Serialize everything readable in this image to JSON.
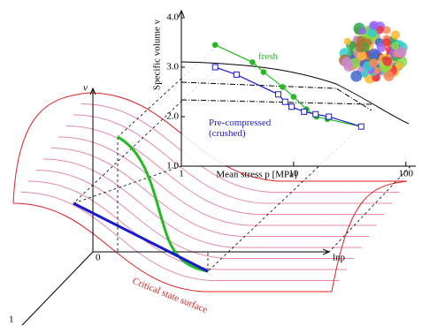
{
  "chart_data": {
    "type": "line",
    "log_x": true,
    "xlabel": "Mean stress p [MPa]",
    "ylabel": "Specific volume v",
    "xlim": [
      1,
      110
    ],
    "ylim": [
      1,
      4.0
    ],
    "xticks": [
      1,
      10,
      100
    ],
    "yticks": [
      {
        "value": 1,
        "label": "1.0"
      },
      {
        "value": 2,
        "label": "2.0"
      },
      {
        "value": 3,
        "label": "3.0"
      },
      {
        "value": 4,
        "label": "4.0"
      }
    ],
    "series": [
      {
        "name": "fresh",
        "color": "#22bb22",
        "x": [
          2,
          4.3,
          5.4,
          8,
          10,
          13,
          16,
          20,
          40
        ],
        "values": [
          3.45,
          3.1,
          2.9,
          2.6,
          2.4,
          2.15,
          2.0,
          1.95,
          1.8
        ]
      },
      {
        "name": "Pre-compressed (crushed)",
        "color": "#1a1acc",
        "x": [
          2,
          3.1,
          7.3,
          8.4,
          9.6,
          12.4,
          15.7,
          20.6,
          40
        ],
        "values": [
          3.0,
          2.85,
          2.45,
          2.3,
          2.2,
          2.1,
          2.05,
          2.0,
          1.8
        ]
      }
    ]
  },
  "diagram": {
    "v_axis": "v",
    "p_axis": "lnp",
    "origin": "0",
    "third_axis": "1",
    "surface": "Critical state surface"
  }
}
